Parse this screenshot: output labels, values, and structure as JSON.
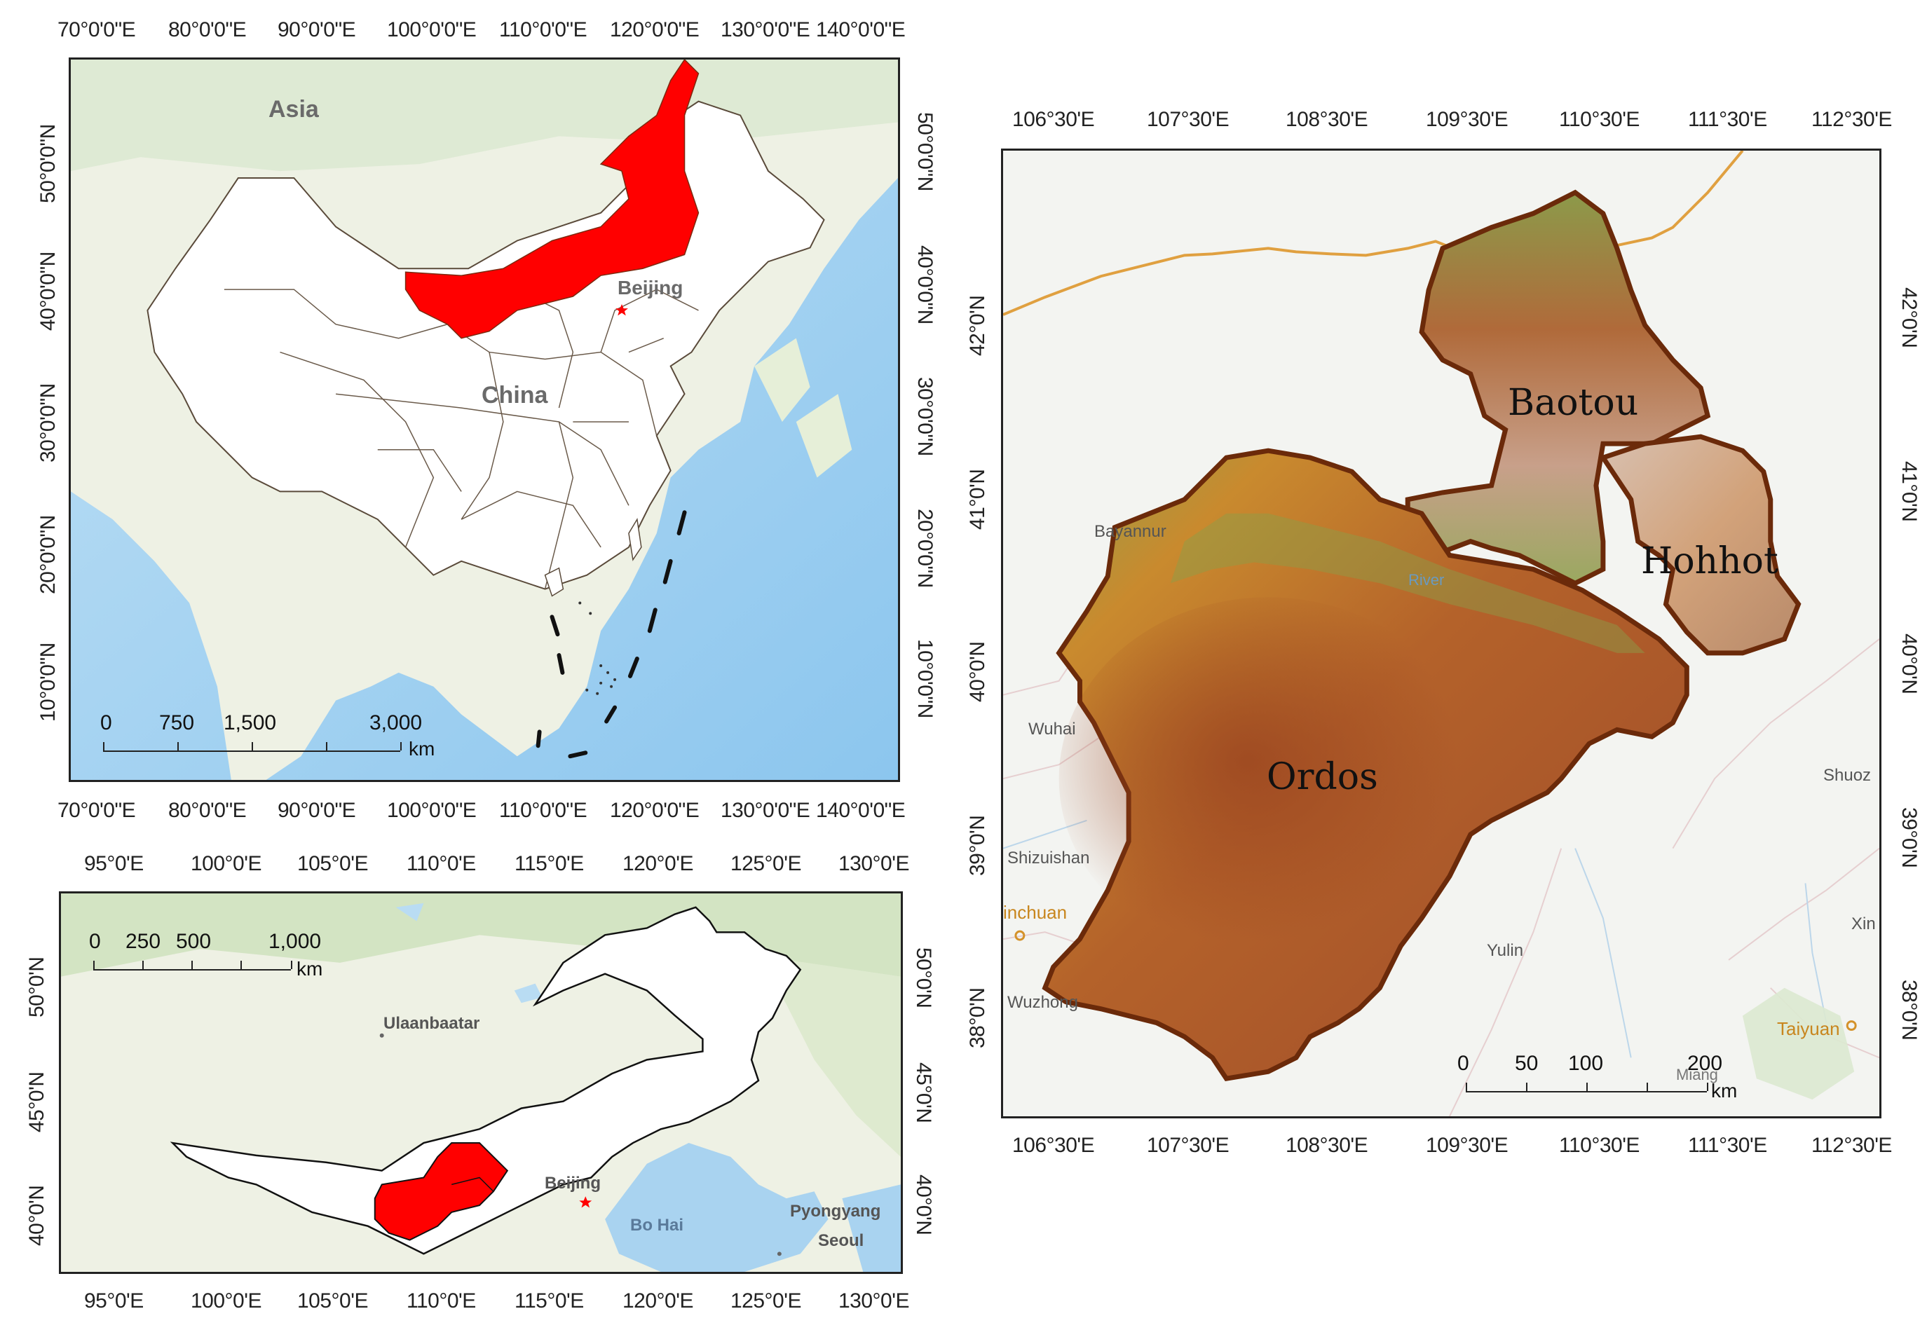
{
  "colors": {
    "highlight": "#ff0000",
    "land": "#eef2e6",
    "sea": "#a9d3f0",
    "boundary": "#5a4a3a",
    "study_outline": "#6b2a0a",
    "dem_low": "#c9772a",
    "dem_mid": "#a04a1e",
    "dem_high": "#7a9a4a",
    "road": "#e0a040"
  },
  "map_china": {
    "x_ticks": [
      "70°0'0\"E",
      "80°0'0\"E",
      "90°0'0\"E",
      "100°0'0\"E",
      "110°0'0\"E",
      "120°0'0\"E",
      "130°0'0\"E",
      "140°0'0\"E"
    ],
    "y_ticks": [
      "50°0'0\"N",
      "40°0'0\"N",
      "30°0'0\"N",
      "20°0'0\"N",
      "10°0'0\"N"
    ],
    "labels": {
      "asia": "Asia",
      "china": "China",
      "beijing": "Beijing"
    },
    "scale": {
      "ticks": [
        "0",
        "750",
        "1,500",
        "3,000"
      ],
      "unit": "km"
    }
  },
  "map_region": {
    "x_ticks": [
      "95°0'E",
      "100°0'E",
      "105°0'E",
      "110°0'E",
      "115°0'E",
      "120°0'E",
      "125°0'E",
      "130°0'E"
    ],
    "y_ticks": [
      "50°0'N",
      "45°0'N",
      "40°0'N"
    ],
    "labels": {
      "ulaanbaatar": "Ulaanbaatar",
      "beijing": "Beijing",
      "bohai": "Bo Hai",
      "pyongyang": "Pyongyang",
      "seoul": "Seoul"
    },
    "scale": {
      "ticks": [
        "0",
        "250",
        "500",
        "1,000"
      ],
      "unit": "km"
    }
  },
  "map_study": {
    "x_ticks": [
      "106°30'E",
      "107°30'E",
      "108°30'E",
      "109°30'E",
      "110°30'E",
      "111°30'E",
      "112°30'E"
    ],
    "y_ticks": [
      "42°0'N",
      "41°0'N",
      "40°0'N",
      "39°0'N",
      "38°0'N"
    ],
    "regions": {
      "baotou": "Baotou",
      "hohhot": "Hohhot",
      "ordos": "Ordos"
    },
    "places": {
      "bayannur": "Bayannur",
      "wuhai": "Wuhai",
      "shizuishan": "Shizuishan",
      "yinchuan": "inchuan",
      "wuzhong": "Wuzhong",
      "yulin": "Yulin",
      "shuozhou": "Shuoz",
      "xin": "Xin",
      "taiyuan": "Taiyuan",
      "river": "River",
      "miang": "Miang"
    },
    "scale": {
      "ticks": [
        "0",
        "50",
        "100",
        "200"
      ],
      "unit": "km"
    }
  }
}
